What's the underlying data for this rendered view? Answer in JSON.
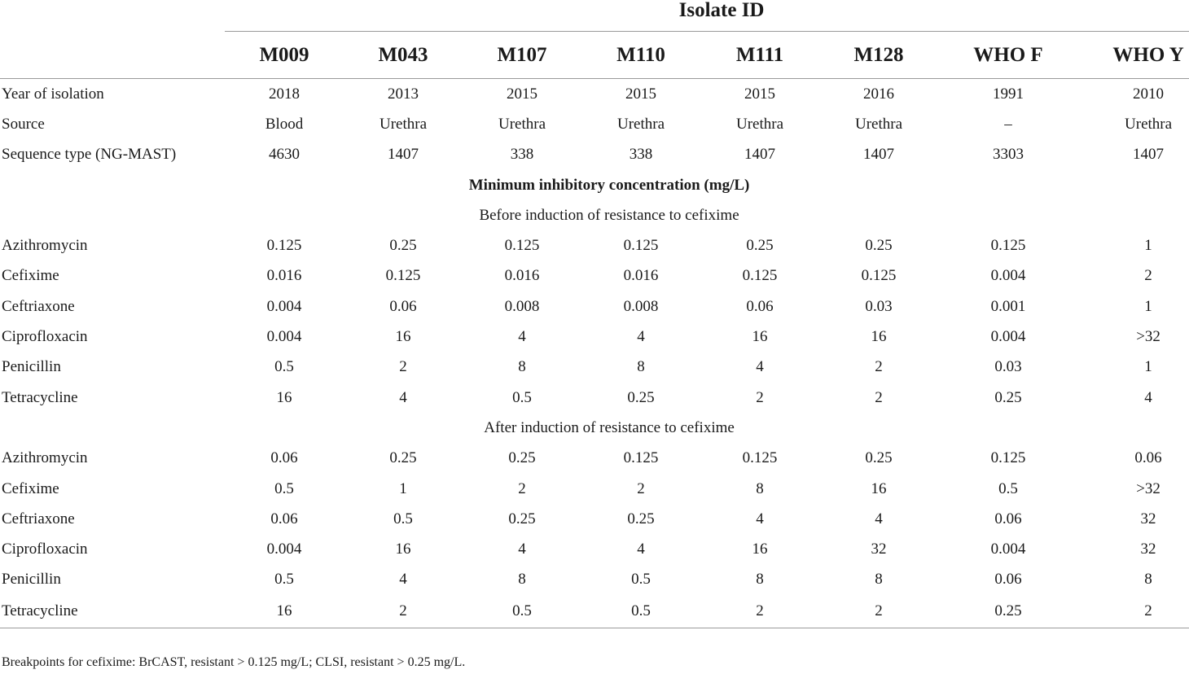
{
  "table": {
    "group_header": "Isolate ID",
    "columns": [
      "M009",
      "M043",
      "M107",
      "M110",
      "M111",
      "M128",
      "WHO F",
      "WHO Y"
    ],
    "info_rows": [
      {
        "label": "Year of isolation",
        "values": [
          "2018",
          "2013",
          "2015",
          "2015",
          "2015",
          "2016",
          "1991",
          "2010"
        ]
      },
      {
        "label": "Source",
        "values": [
          "Blood",
          "Urethra",
          "Urethra",
          "Urethra",
          "Urethra",
          "Urethra",
          "–",
          "Urethra"
        ]
      },
      {
        "label": "Sequence type (NG-MAST)",
        "values": [
          "4630",
          "1407",
          "338",
          "338",
          "1407",
          "1407",
          "3303",
          "1407"
        ]
      }
    ],
    "mic_header": "Minimum inhibitory concentration (mg/L)",
    "before_header": "Before induction of resistance to cefixime",
    "before_rows": [
      {
        "label": "Azithromycin",
        "values": [
          "0.125",
          "0.25",
          "0.125",
          "0.125",
          "0.25",
          "0.25",
          "0.125",
          "1"
        ]
      },
      {
        "label": "Cefixime",
        "values": [
          "0.016",
          "0.125",
          "0.016",
          "0.016",
          "0.125",
          "0.125",
          "0.004",
          "2"
        ]
      },
      {
        "label": "Ceftriaxone",
        "values": [
          "0.004",
          "0.06",
          "0.008",
          "0.008",
          "0.06",
          "0.03",
          "0.001",
          "1"
        ]
      },
      {
        "label": "Ciprofloxacin",
        "values": [
          "0.004",
          "16",
          "4",
          "4",
          "16",
          "16",
          "0.004",
          ">32"
        ]
      },
      {
        "label": "Penicillin",
        "values": [
          "0.5",
          "2",
          "8",
          "8",
          "4",
          "2",
          "0.03",
          "1"
        ]
      },
      {
        "label": "Tetracycline",
        "values": [
          "16",
          "4",
          "0.5",
          "0.25",
          "2",
          "2",
          "0.25",
          "4"
        ]
      }
    ],
    "after_header": "After induction of resistance to cefixime",
    "after_rows": [
      {
        "label": "Azithromycin",
        "values": [
          "0.06",
          "0.25",
          "0.25",
          "0.125",
          "0.125",
          "0.25",
          "0.125",
          "0.06"
        ]
      },
      {
        "label": "Cefixime",
        "values": [
          "0.5",
          "1",
          "2",
          "2",
          "8",
          "16",
          "0.5",
          ">32"
        ]
      },
      {
        "label": "Ceftriaxone",
        "values": [
          "0.06",
          "0.5",
          "0.25",
          "0.25",
          "4",
          "4",
          "0.06",
          "32"
        ]
      },
      {
        "label": "Ciprofloxacin",
        "values": [
          "0.004",
          "16",
          "4",
          "4",
          "16",
          "32",
          "0.004",
          "32"
        ]
      },
      {
        "label": "Penicillin",
        "values": [
          "0.5",
          "4",
          "8",
          "0.5",
          "8",
          "8",
          "0.06",
          "8"
        ]
      },
      {
        "label": "Tetracycline",
        "values": [
          "16",
          "2",
          "0.5",
          "0.5",
          "2",
          "2",
          "0.25",
          "2"
        ]
      }
    ]
  },
  "footnote": "Breakpoints for cefixime: BrCAST, resistant > 0.125 mg/L; CLSI, resistant > 0.25 mg/L."
}
